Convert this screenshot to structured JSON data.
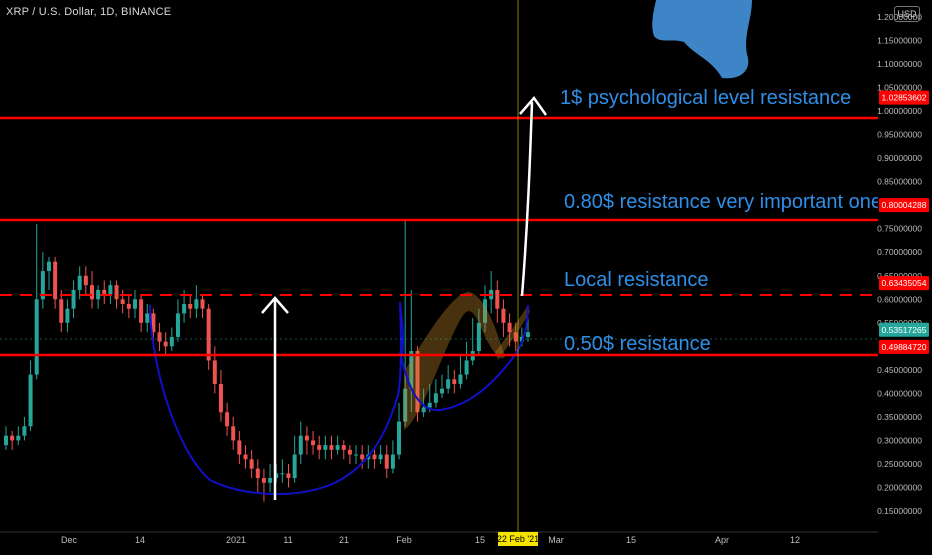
{
  "header": {
    "symbol_title": "XRP / U.S. Dollar, 1D, BINANCE",
    "currency_button": "USD"
  },
  "colors": {
    "background": "#000000",
    "up_candle": "#26a69a",
    "down_candle": "#ef5350",
    "resistance_line": "#ff0000",
    "annotation_text": "#2f8fe8",
    "cup_curve": "#1010c8",
    "arrow": "#ffffff",
    "logo_shape": "#3d85c6",
    "date_cursor": "#f5e400",
    "current_price_tag": "#26a69a"
  },
  "icons": {
    "logo": "blue-blob-logo-icon"
  },
  "price_axis": {
    "ticks": [
      "1.20000000",
      "1.15000000",
      "1.10000000",
      "1.05000000",
      "1.00000000",
      "0.95000000",
      "0.90000000",
      "0.85000000",
      "0.75000000",
      "0.70000000",
      "0.65000000",
      "0.60000000",
      "0.55000000",
      "0.45000000",
      "0.40000000",
      "0.35000000",
      "0.30000000",
      "0.25000000",
      "0.20000000",
      "0.15000000"
    ],
    "ticks_values": [
      1.2,
      1.15,
      1.1,
      1.05,
      1.0,
      0.95,
      0.9,
      0.85,
      0.75,
      0.7,
      0.65,
      0.6,
      0.55,
      0.45,
      0.4,
      0.35,
      0.3,
      0.25,
      0.2,
      0.15
    ],
    "min": 0.15,
    "max": 1.2
  },
  "price_tags": [
    {
      "label": "1.02853602",
      "value": 1.02853602,
      "kind": "resistance"
    },
    {
      "label": "0.80004288",
      "value": 0.80004288,
      "kind": "resistance"
    },
    {
      "label": "0.63435054",
      "value": 0.63435054,
      "kind": "resistance"
    },
    {
      "label": "0.53517265",
      "value": 0.53517265,
      "kind": "current"
    },
    {
      "label": "0.49884720",
      "value": 0.4988472,
      "kind": "resistance"
    }
  ],
  "time_axis": {
    "labels": [
      "Dec",
      "14",
      "2021",
      "11",
      "21",
      "Feb",
      "15",
      "Mar",
      "15",
      "Apr",
      "12"
    ],
    "cursor_label": "22 Feb '21"
  },
  "annotations": [
    {
      "text": "1$ psychological level resistance"
    },
    {
      "text": "0.80$ resistance very important one"
    },
    {
      "text": "Local resistance"
    },
    {
      "text": "0.50$ resistance"
    }
  ],
  "chart_data": {
    "type": "candlestick",
    "title": "XRP / U.S. Dollar, 1D, BINANCE",
    "ylim": [
      0.15,
      1.2
    ],
    "x_tick_labels": [
      "Dec",
      "14",
      "2021",
      "11",
      "21",
      "Feb",
      "15",
      "Mar",
      "15",
      "Apr",
      "12"
    ],
    "horizontal_lines": [
      1.02853602,
      0.80004288,
      0.63435054,
      0.4988472
    ],
    "current_price": 0.53517265,
    "closes": [
      0.31,
      0.3,
      0.31,
      0.33,
      0.44,
      0.6,
      0.66,
      0.68,
      0.6,
      0.55,
      0.58,
      0.62,
      0.65,
      0.63,
      0.6,
      0.62,
      0.61,
      0.63,
      0.6,
      0.59,
      0.58,
      0.6,
      0.55,
      0.57,
      0.53,
      0.51,
      0.5,
      0.52,
      0.57,
      0.59,
      0.58,
      0.6,
      0.58,
      0.47,
      0.42,
      0.36,
      0.33,
      0.3,
      0.27,
      0.26,
      0.24,
      0.22,
      0.21,
      0.22,
      0.23,
      0.23,
      0.22,
      0.27,
      0.31,
      0.3,
      0.29,
      0.28,
      0.29,
      0.28,
      0.29,
      0.28,
      0.27,
      0.27,
      0.26,
      0.27,
      0.26,
      0.27,
      0.24,
      0.27,
      0.34,
      0.41,
      0.49,
      0.36,
      0.37,
      0.38,
      0.4,
      0.41,
      0.43,
      0.42,
      0.44,
      0.47,
      0.49,
      0.55,
      0.6,
      0.62,
      0.58,
      0.55,
      0.53,
      0.51,
      0.52,
      0.53
    ],
    "opens": [
      0.29,
      0.31,
      0.3,
      0.31,
      0.33,
      0.44,
      0.6,
      0.66,
      0.68,
      0.6,
      0.55,
      0.58,
      0.62,
      0.65,
      0.63,
      0.6,
      0.62,
      0.61,
      0.63,
      0.6,
      0.59,
      0.58,
      0.6,
      0.55,
      0.57,
      0.53,
      0.51,
      0.5,
      0.52,
      0.57,
      0.59,
      0.58,
      0.6,
      0.58,
      0.47,
      0.42,
      0.36,
      0.33,
      0.3,
      0.27,
      0.26,
      0.24,
      0.22,
      0.21,
      0.22,
      0.23,
      0.23,
      0.22,
      0.27,
      0.31,
      0.3,
      0.29,
      0.28,
      0.29,
      0.28,
      0.29,
      0.28,
      0.27,
      0.27,
      0.26,
      0.27,
      0.26,
      0.27,
      0.24,
      0.27,
      0.34,
      0.41,
      0.49,
      0.36,
      0.37,
      0.38,
      0.4,
      0.41,
      0.43,
      0.42,
      0.44,
      0.47,
      0.49,
      0.55,
      0.6,
      0.62,
      0.58,
      0.55,
      0.53,
      0.51,
      0.52
    ],
    "highs": [
      0.33,
      0.32,
      0.33,
      0.35,
      0.47,
      0.76,
      0.7,
      0.69,
      0.69,
      0.62,
      0.6,
      0.64,
      0.67,
      0.67,
      0.66,
      0.63,
      0.64,
      0.64,
      0.64,
      0.62,
      0.61,
      0.62,
      0.61,
      0.59,
      0.58,
      0.55,
      0.53,
      0.54,
      0.6,
      0.62,
      0.61,
      0.63,
      0.61,
      0.59,
      0.5,
      0.45,
      0.38,
      0.35,
      0.32,
      0.29,
      0.28,
      0.26,
      0.24,
      0.25,
      0.25,
      0.26,
      0.25,
      0.31,
      0.34,
      0.33,
      0.32,
      0.31,
      0.31,
      0.31,
      0.31,
      0.3,
      0.29,
      0.29,
      0.29,
      0.29,
      0.28,
      0.29,
      0.29,
      0.3,
      0.38,
      0.77,
      0.62,
      0.5,
      0.41,
      0.42,
      0.43,
      0.44,
      0.46,
      0.45,
      0.48,
      0.51,
      0.56,
      0.58,
      0.63,
      0.66,
      0.64,
      0.6,
      0.57,
      0.55,
      0.54,
      0.56
    ],
    "lows": [
      0.28,
      0.28,
      0.29,
      0.3,
      0.32,
      0.43,
      0.58,
      0.62,
      0.58,
      0.53,
      0.53,
      0.56,
      0.6,
      0.61,
      0.58,
      0.58,
      0.59,
      0.59,
      0.58,
      0.57,
      0.56,
      0.56,
      0.53,
      0.53,
      0.51,
      0.49,
      0.48,
      0.49,
      0.51,
      0.55,
      0.56,
      0.56,
      0.56,
      0.45,
      0.4,
      0.34,
      0.31,
      0.28,
      0.25,
      0.24,
      0.22,
      0.19,
      0.17,
      0.19,
      0.21,
      0.21,
      0.2,
      0.21,
      0.25,
      0.27,
      0.27,
      0.26,
      0.26,
      0.26,
      0.27,
      0.26,
      0.25,
      0.25,
      0.24,
      0.24,
      0.24,
      0.25,
      0.22,
      0.23,
      0.26,
      0.33,
      0.36,
      0.34,
      0.35,
      0.36,
      0.37,
      0.39,
      0.4,
      0.4,
      0.41,
      0.43,
      0.46,
      0.48,
      0.53,
      0.57,
      0.55,
      0.52,
      0.5,
      0.49,
      0.5,
      0.51
    ]
  }
}
